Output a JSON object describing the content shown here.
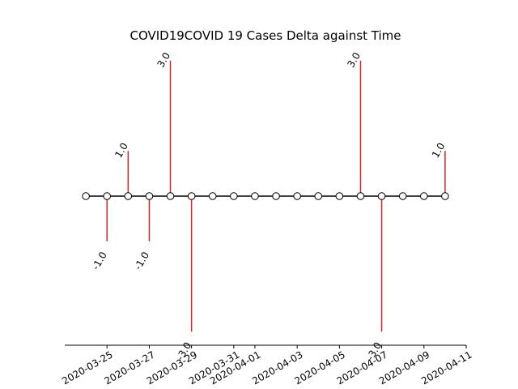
{
  "chart_data": {
    "type": "stem",
    "title": "COVID19COVID 19 Cases Delta against Time",
    "xlabel": "",
    "ylabel": "",
    "x": [
      "2020-03-24",
      "2020-03-25",
      "2020-03-26",
      "2020-03-27",
      "2020-03-28",
      "2020-03-29",
      "2020-03-30",
      "2020-03-31",
      "2020-04-01",
      "2020-04-02",
      "2020-04-03",
      "2020-04-04",
      "2020-04-05",
      "2020-04-06",
      "2020-04-07",
      "2020-04-08",
      "2020-04-09",
      "2020-04-10"
    ],
    "values": [
      0,
      -1.0,
      1.0,
      -1.0,
      3.0,
      -3.0,
      0,
      0,
      0,
      0,
      0,
      0,
      0,
      3.0,
      -3.0,
      0,
      0,
      1.0
    ],
    "data_labels": [
      {
        "x": "2020-03-25",
        "text": "-1.0"
      },
      {
        "x": "2020-03-26",
        "text": "1.0"
      },
      {
        "x": "2020-03-27",
        "text": "-1.0"
      },
      {
        "x": "2020-03-28",
        "text": "3.0"
      },
      {
        "x": "2020-03-29",
        "text": "-3.0"
      },
      {
        "x": "2020-04-06",
        "text": "3.0"
      },
      {
        "x": "2020-04-07",
        "text": "-3.0"
      },
      {
        "x": "2020-04-10",
        "text": "1.0"
      }
    ],
    "xticks": [
      {
        "x": "2020-03-25",
        "label": "2020-03-25"
      },
      {
        "x": "2020-03-27",
        "label": "2020-03-27"
      },
      {
        "x": "2020-03-29",
        "label": "2020-03-29"
      },
      {
        "x": "2020-03-31",
        "label": "2020-03-31"
      },
      {
        "x": "2020-04-01",
        "label": "2020-04-01"
      },
      {
        "x": "2020-04-03",
        "label": "2020-04-03"
      },
      {
        "x": "2020-04-05",
        "label": "2020-04-05"
      },
      {
        "x": "2020-04-07",
        "label": "2020-04-07"
      },
      {
        "x": "2020-04-09",
        "label": "2020-04-09"
      },
      {
        "x": "2020-04-11",
        "label": "2020-04-11"
      }
    ],
    "xlim": [
      "2020-03-23",
      "2020-04-11"
    ],
    "ylim": [
      -3.3,
      3.3
    ],
    "grid": false,
    "colors": {
      "stem": "#d62728",
      "baseline": "#000000",
      "marker_fill": "#ffffff",
      "marker_edge": "#000000"
    }
  }
}
